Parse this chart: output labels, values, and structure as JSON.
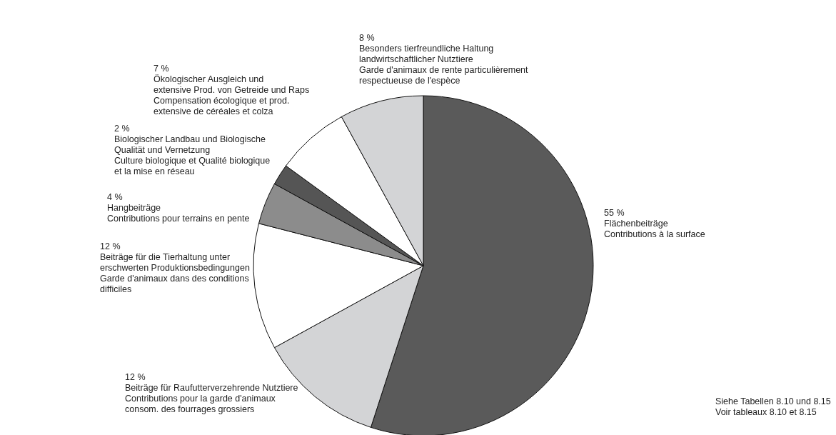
{
  "chart_data": {
    "type": "pie",
    "categories": [
      "Flächenbeiträge\nContributions à la surface",
      "Beiträge für Raufutterverzehrende Nutztiere\nContributions pour la garde d'animaux\nconsom. des fourrages grossiers",
      "Beiträge für die Tierhaltung unter\nerschwerten Produktionsbedingungen\nGarde d'animaux dans des conditions\ndifficiles",
      "Hangbeiträge\nContributions pour terrains en pente",
      "Biologischer Landbau und Biologische\nQualität und Vernetzung\nCulture biologique et Qualité biologique\net la mise en réseau",
      "Ökologischer Ausgleich und\nextensive Prod. von Getreide und Raps\nCompensation écologique et prod.\nextensive de céréales et colza",
      "Besonders tierfreundliche Haltung\nlandwirtschaftlicher Nutztiere\nGarde d'animaux de rente particulièrement\nrespectueuse de l'espèce"
    ],
    "values": [
      55,
      12,
      12,
      4,
      2,
      7,
      8
    ],
    "value_labels": [
      "55 %",
      "12 %",
      "12 %",
      "4 %",
      "2 %",
      "7 %",
      "8 %"
    ],
    "colors": [
      "#5a5a5a",
      "#d3d4d6",
      "#ffffff",
      "#8c8c8c",
      "#555555",
      "#ffffff",
      "#d3d4d6"
    ],
    "annotations": [
      "Siehe Tabellen 8.10 und 8.15\nVoir tableaux 8.10 et 8.15"
    ]
  }
}
